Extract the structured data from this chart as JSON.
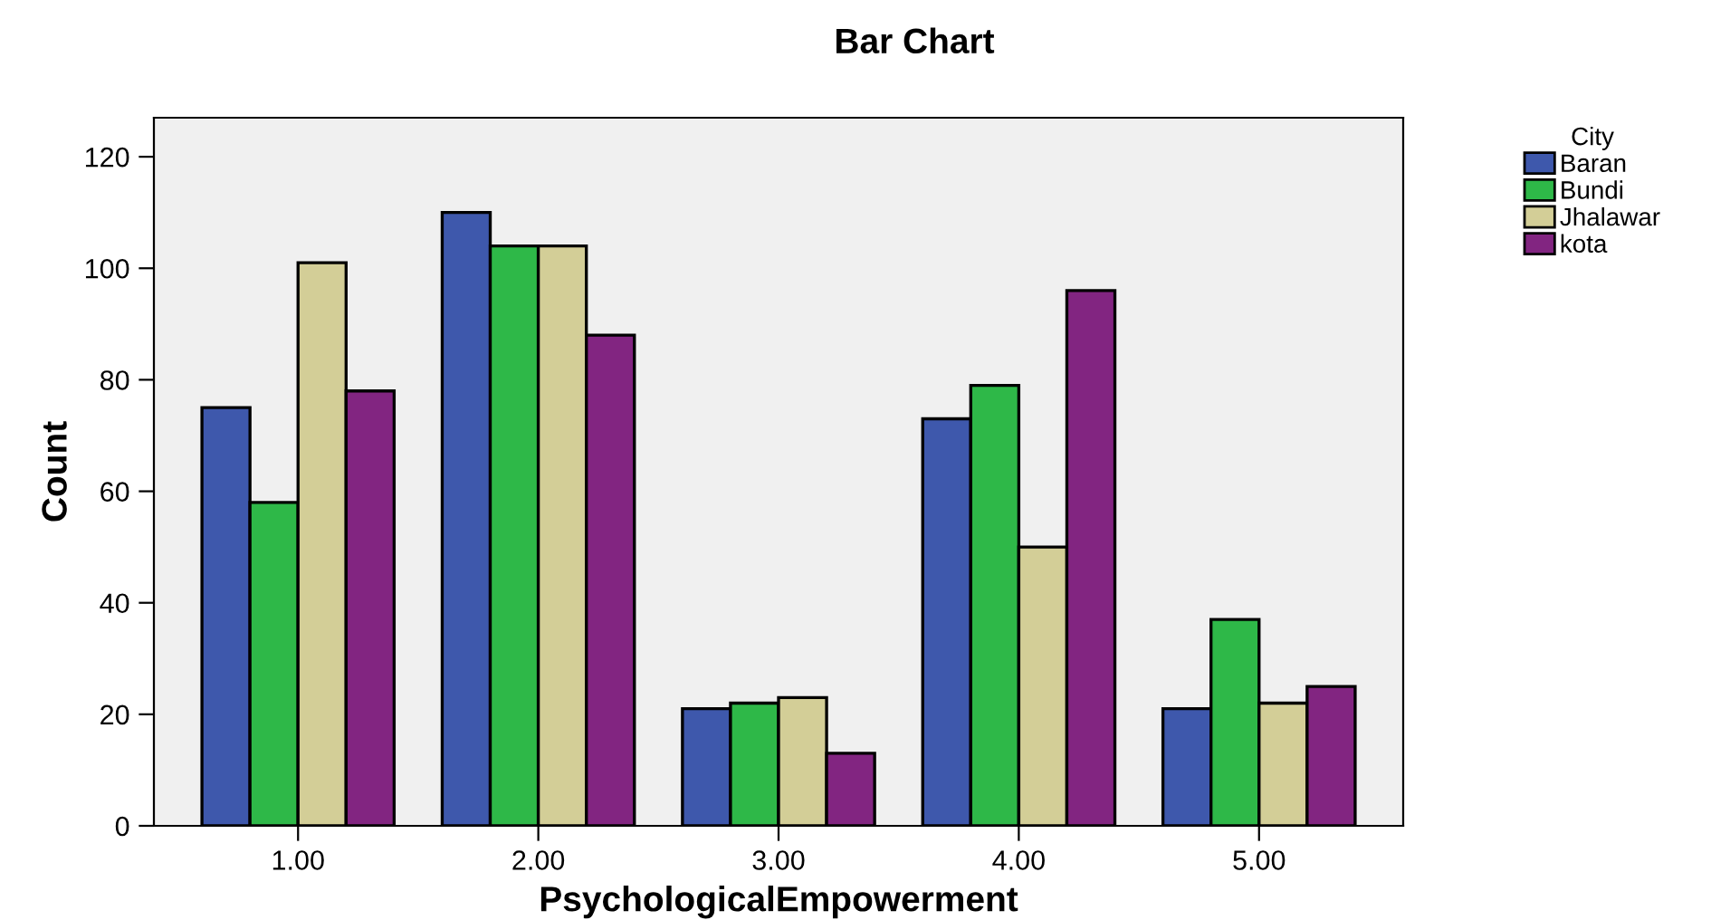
{
  "chart_data": {
    "type": "bar",
    "title": "Bar Chart",
    "xlabel": "PsychologicalEmpowerment",
    "ylabel": "Count",
    "legend_title": "City",
    "categories": [
      "1.00",
      "2.00",
      "3.00",
      "4.00",
      "5.00"
    ],
    "series": [
      {
        "name": "Baran",
        "color": "#3e58ac",
        "values": [
          75,
          110,
          21,
          73,
          21
        ]
      },
      {
        "name": "Bundi",
        "color": "#2eb848",
        "values": [
          58,
          104,
          22,
          79,
          37
        ]
      },
      {
        "name": "Jhalawar",
        "color": "#d3ce97",
        "values": [
          101,
          104,
          23,
          50,
          22
        ]
      },
      {
        "name": "kota",
        "color": "#822581",
        "values": [
          78,
          88,
          13,
          96,
          25
        ]
      }
    ],
    "ylim": [
      0,
      127
    ],
    "yticks": [
      0,
      20,
      40,
      60,
      80,
      100,
      120
    ],
    "grid": false,
    "legend": "top right"
  }
}
